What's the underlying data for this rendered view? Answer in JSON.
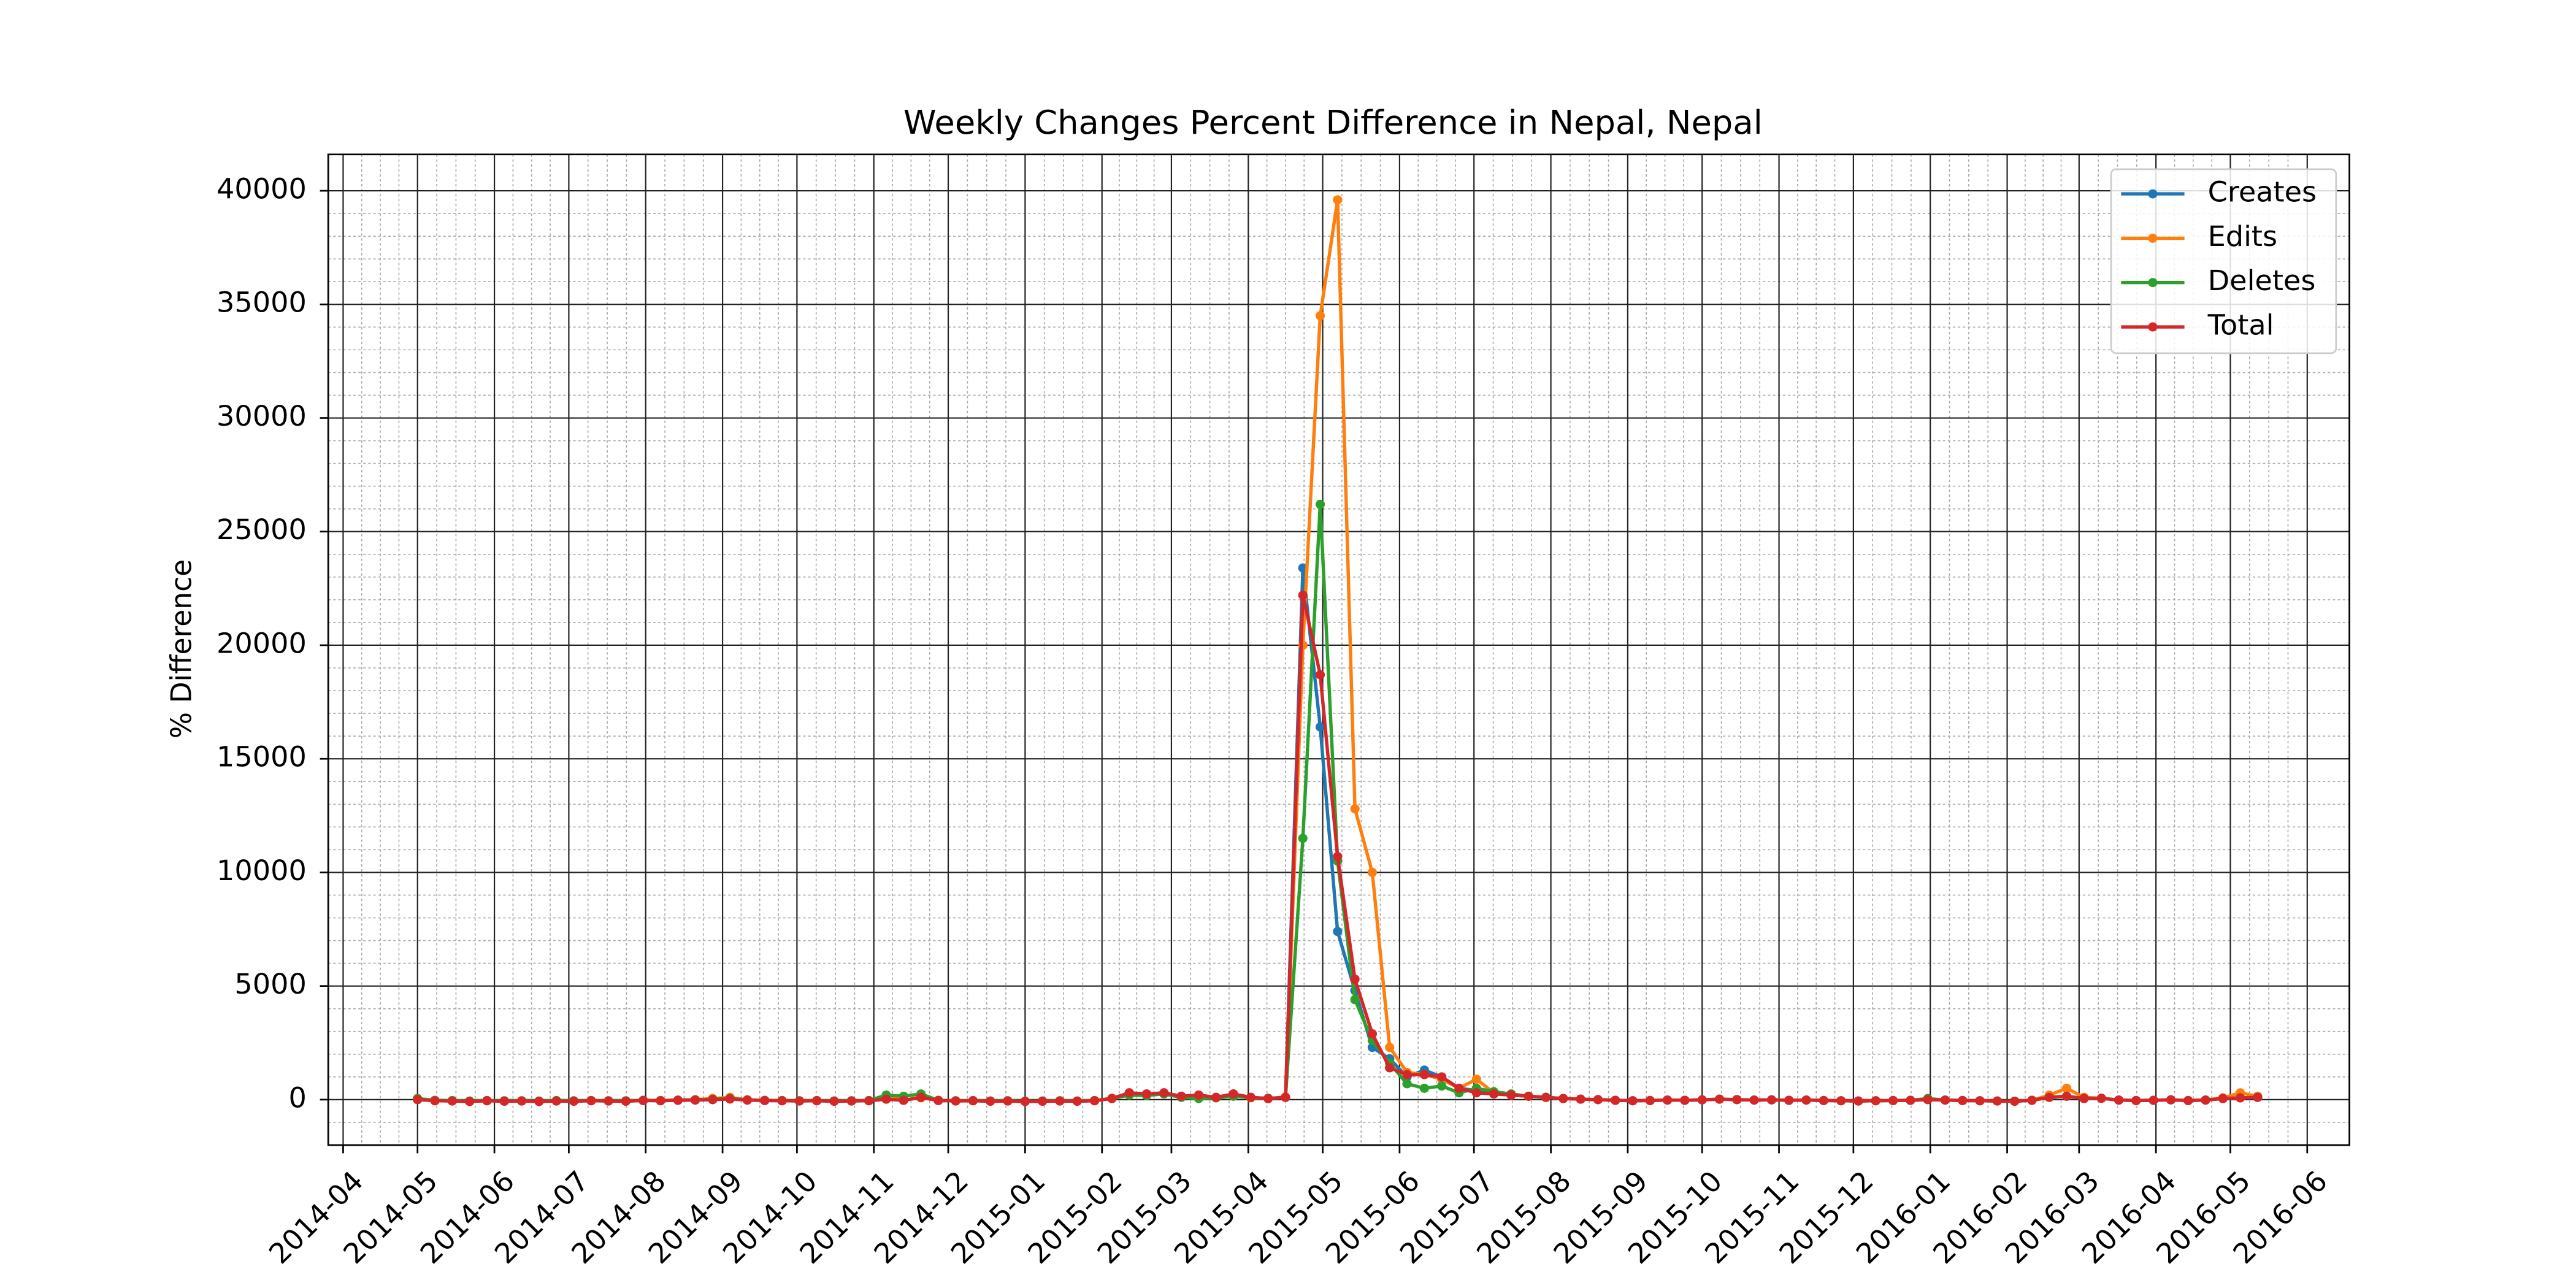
{
  "chart_data": {
    "type": "line",
    "title": "Weekly Changes Percent Difference in Nepal, Nepal",
    "y_label": "% Difference",
    "x": [
      "2014-05-01",
      "2014-05-08",
      "2014-05-15",
      "2014-05-22",
      "2014-05-29",
      "2014-06-05",
      "2014-06-12",
      "2014-06-19",
      "2014-06-26",
      "2014-07-03",
      "2014-07-10",
      "2014-07-17",
      "2014-07-24",
      "2014-07-31",
      "2014-08-07",
      "2014-08-14",
      "2014-08-21",
      "2014-08-28",
      "2014-09-04",
      "2014-09-11",
      "2014-09-18",
      "2014-09-25",
      "2014-10-02",
      "2014-10-09",
      "2014-10-16",
      "2014-10-23",
      "2014-10-30",
      "2014-11-06",
      "2014-11-13",
      "2014-11-20",
      "2014-11-27",
      "2014-12-04",
      "2014-12-11",
      "2014-12-18",
      "2014-12-25",
      "2015-01-01",
      "2015-01-08",
      "2015-01-15",
      "2015-01-22",
      "2015-01-29",
      "2015-02-05",
      "2015-02-12",
      "2015-02-19",
      "2015-02-26",
      "2015-03-05",
      "2015-03-12",
      "2015-03-19",
      "2015-03-26",
      "2015-04-02",
      "2015-04-09",
      "2015-04-16",
      "2015-04-23",
      "2015-04-30",
      "2015-05-07",
      "2015-05-14",
      "2015-05-21",
      "2015-05-28",
      "2015-06-04",
      "2015-06-11",
      "2015-06-18",
      "2015-06-25",
      "2015-07-02",
      "2015-07-09",
      "2015-07-16",
      "2015-07-23",
      "2015-07-30",
      "2015-08-06",
      "2015-08-13",
      "2015-08-20",
      "2015-08-27",
      "2015-09-03",
      "2015-09-10",
      "2015-09-17",
      "2015-09-24",
      "2015-10-01",
      "2015-10-08",
      "2015-10-15",
      "2015-10-22",
      "2015-10-29",
      "2015-11-05",
      "2015-11-12",
      "2015-11-19",
      "2015-11-26",
      "2015-12-03",
      "2015-12-10",
      "2015-12-17",
      "2015-12-24",
      "2015-12-31",
      "2016-01-07",
      "2016-01-14",
      "2016-01-21",
      "2016-01-28",
      "2016-02-04",
      "2016-02-11",
      "2016-02-18",
      "2016-02-25",
      "2016-03-03",
      "2016-03-10",
      "2016-03-17",
      "2016-03-24",
      "2016-03-31",
      "2016-04-07",
      "2016-04-14",
      "2016-04-21",
      "2016-04-28",
      "2016-05-05",
      "2016-05-12"
    ],
    "series": [
      {
        "name": "Creates",
        "color": "#1f77b4",
        "values": [
          0,
          -50,
          -60,
          -80,
          -50,
          -70,
          -60,
          -80,
          -60,
          -70,
          -50,
          -60,
          -70,
          -40,
          -50,
          -30,
          -20,
          0,
          30,
          -20,
          -40,
          -50,
          -60,
          -50,
          -70,
          -60,
          -50,
          20,
          -30,
          100,
          -40,
          -60,
          -50,
          -70,
          -60,
          -80,
          -70,
          -60,
          -70,
          -50,
          50,
          300,
          250,
          300,
          150,
          200,
          100,
          250,
          100,
          50,
          100,
          23400,
          16400,
          7400,
          4800,
          2300,
          1800,
          1000,
          1300,
          1000,
          500,
          400,
          250,
          200,
          150,
          100,
          50,
          20,
          0,
          -30,
          -50,
          -40,
          -20,
          -30,
          -10,
          20,
          0,
          -20,
          -10,
          -30,
          -20,
          -40,
          -50,
          -60,
          -50,
          -40,
          -30,
          0,
          -20,
          -40,
          -50,
          -60,
          -70,
          -30,
          100,
          150,
          50,
          60,
          -20,
          -40,
          -30,
          -10,
          -40,
          -20,
          50,
          80,
          100
        ]
      },
      {
        "name": "Edits",
        "color": "#ff7f0e",
        "values": [
          0,
          -40,
          -50,
          -70,
          -40,
          -60,
          -50,
          -70,
          -50,
          -60,
          -40,
          -50,
          -60,
          -30,
          -40,
          -20,
          0,
          50,
          100,
          -10,
          -30,
          -40,
          -50,
          -40,
          -60,
          -50,
          -40,
          150,
          -20,
          80,
          -30,
          -50,
          -40,
          -60,
          -50,
          -70,
          -60,
          -50,
          -60,
          -40,
          60,
          250,
          200,
          280,
          120,
          180,
          80,
          200,
          80,
          40,
          120,
          20000,
          34500,
          39600,
          12800,
          10000,
          2300,
          1200,
          1100,
          900,
          500,
          900,
          300,
          200,
          150,
          100,
          50,
          20,
          0,
          -30,
          -50,
          -40,
          -20,
          -30,
          -10,
          20,
          0,
          -20,
          -10,
          -30,
          -20,
          -40,
          -50,
          -60,
          -50,
          -40,
          -30,
          0,
          -20,
          -40,
          -50,
          -60,
          -70,
          -30,
          200,
          500,
          100,
          60,
          -20,
          -40,
          -30,
          -10,
          -40,
          -20,
          80,
          300,
          150
        ]
      },
      {
        "name": "Deletes",
        "color": "#2ca02c",
        "values": [
          50,
          -30,
          -40,
          -60,
          -40,
          -50,
          -50,
          -60,
          -40,
          -50,
          -40,
          -50,
          -50,
          -30,
          -40,
          -20,
          -10,
          20,
          50,
          -10,
          -30,
          -40,
          -50,
          -40,
          -60,
          -50,
          -40,
          200,
          150,
          250,
          -30,
          -50,
          -40,
          -60,
          -50,
          -70,
          -60,
          -50,
          -60,
          -40,
          50,
          200,
          180,
          250,
          100,
          50,
          80,
          150,
          90,
          60,
          100,
          11500,
          26200,
          10500,
          4400,
          2600,
          1600,
          700,
          500,
          600,
          300,
          500,
          350,
          250,
          150,
          100,
          50,
          20,
          0,
          -30,
          -50,
          -40,
          -20,
          -30,
          -10,
          20,
          0,
          -20,
          -10,
          -30,
          -20,
          -40,
          -50,
          -60,
          -50,
          -40,
          -30,
          50,
          -20,
          -40,
          -50,
          -60,
          -70,
          -30,
          100,
          150,
          50,
          60,
          -20,
          -40,
          -30,
          -10,
          -40,
          -20,
          50,
          80,
          100
        ]
      },
      {
        "name": "Total",
        "color": "#d62728",
        "values": [
          0,
          -50,
          -60,
          -80,
          -50,
          -70,
          -60,
          -80,
          -60,
          -70,
          -50,
          -60,
          -70,
          -40,
          -50,
          -30,
          -20,
          0,
          30,
          -20,
          -40,
          -50,
          -60,
          -50,
          -70,
          -60,
          -50,
          20,
          -30,
          100,
          -40,
          -60,
          -50,
          -70,
          -60,
          -80,
          -70,
          -60,
          -70,
          -50,
          50,
          300,
          250,
          300,
          150,
          200,
          100,
          250,
          100,
          50,
          100,
          22200,
          18700,
          10700,
          5300,
          2900,
          1400,
          1100,
          1100,
          1000,
          500,
          300,
          250,
          200,
          150,
          100,
          50,
          20,
          0,
          -30,
          -50,
          -40,
          -20,
          -30,
          -10,
          20,
          0,
          -20,
          -10,
          -30,
          -20,
          -40,
          -50,
          -60,
          -50,
          -40,
          -30,
          0,
          -20,
          -40,
          -50,
          -60,
          -70,
          -30,
          100,
          150,
          50,
          60,
          -20,
          -40,
          -30,
          -10,
          -40,
          -20,
          50,
          80,
          100
        ]
      }
    ],
    "xlim": [
      "2014-03-26",
      "2016-06-18"
    ],
    "xticks": [
      "2014-04",
      "2014-05",
      "2014-06",
      "2014-07",
      "2014-08",
      "2014-09",
      "2014-10",
      "2014-11",
      "2014-12",
      "2015-01",
      "2015-02",
      "2015-03",
      "2015-04",
      "2015-05",
      "2015-06",
      "2015-07",
      "2015-08",
      "2015-09",
      "2015-10",
      "2015-11",
      "2015-12",
      "2016-01",
      "2016-02",
      "2016-03",
      "2016-04",
      "2016-05",
      "2016-06"
    ],
    "ylim": [
      -2000,
      41600
    ],
    "yticks": [
      0,
      5000,
      10000,
      15000,
      20000,
      25000,
      30000,
      35000,
      40000
    ],
    "grid": true,
    "minor_grid": true,
    "legend": "upper right"
  }
}
